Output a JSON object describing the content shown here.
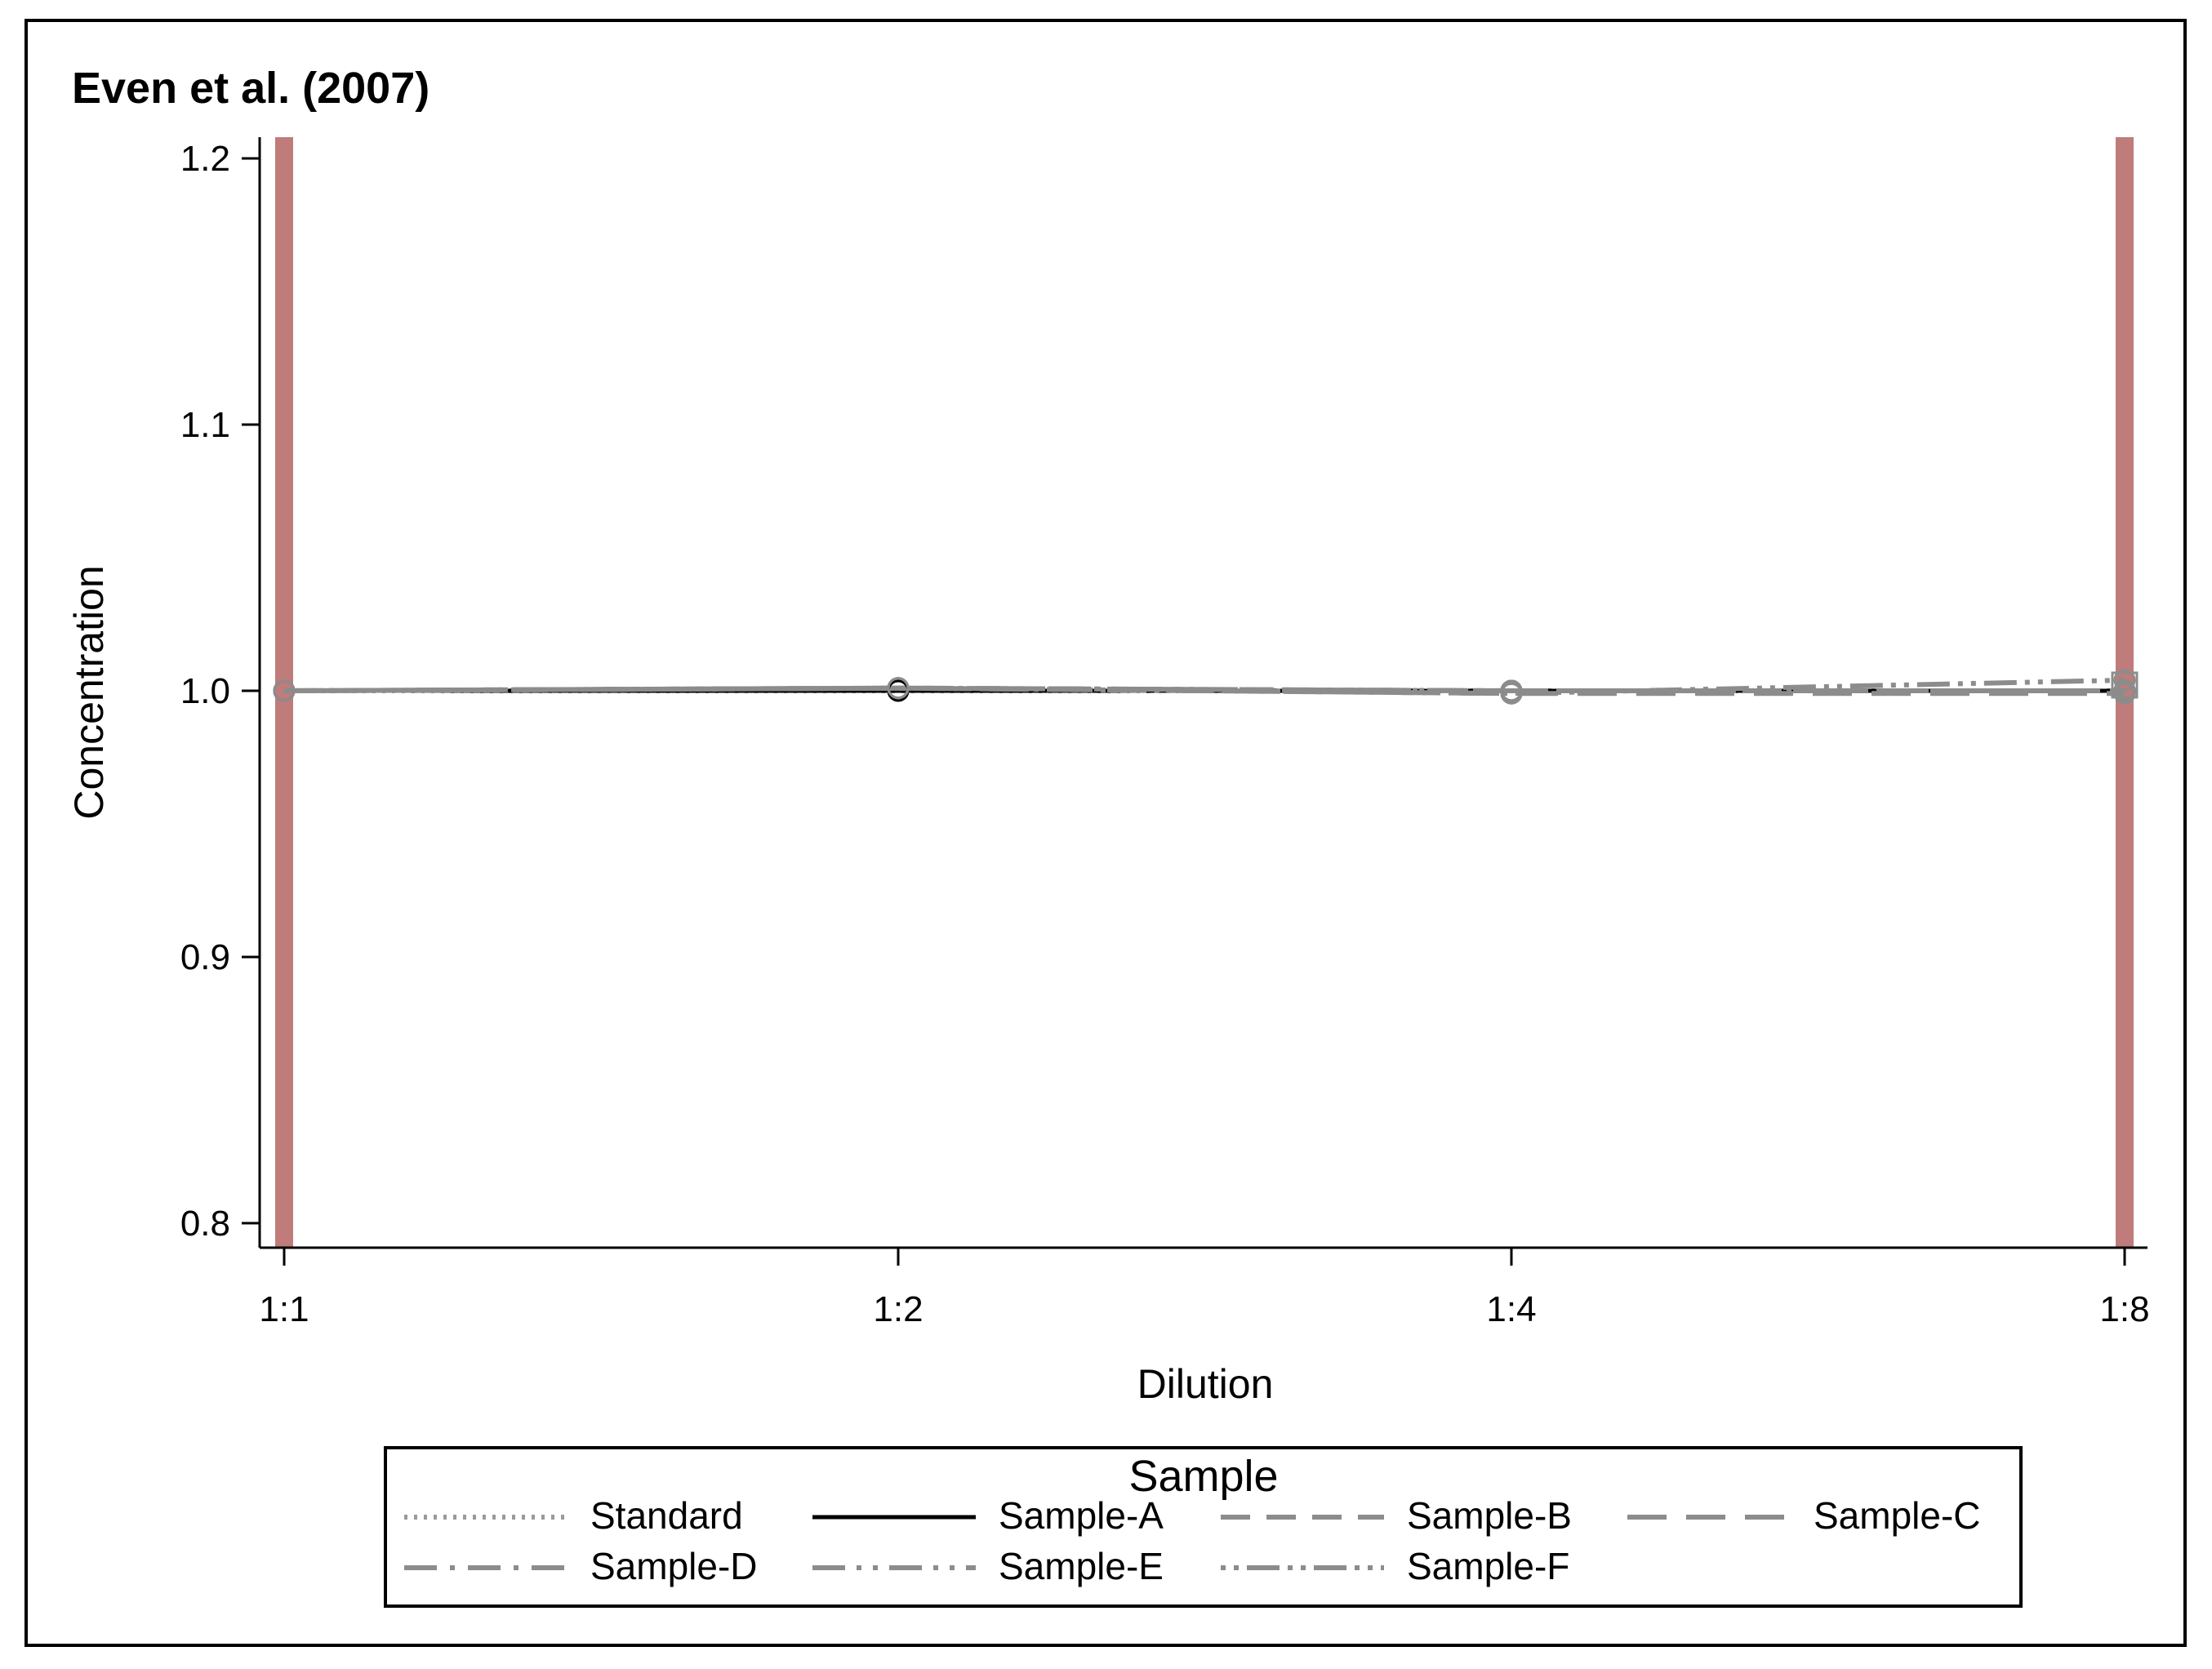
{
  "chart_data": {
    "type": "line",
    "title": "Even et al. (2007)",
    "xlabel": "Dilution",
    "ylabel": "Concentration",
    "categories": [
      "1:1",
      "1:2",
      "1:4",
      "1:8"
    ],
    "ylim": [
      0.8,
      1.2
    ],
    "yticks": [
      "0.8",
      "0.9",
      "1.0",
      "1.1",
      "1.2"
    ],
    "reference_lines_at": [
      "1:1",
      "1:8"
    ],
    "reference_line_color": "#c07b7b",
    "grid": false,
    "legend": {
      "title": "Sample",
      "placement": "bottom"
    },
    "series": [
      {
        "name": "Standard",
        "values": [
          1.0,
          1.0,
          1.0,
          1.0
        ],
        "color": "#9a9a9a",
        "dash": "dotted"
      },
      {
        "name": "Sample-A",
        "values": [
          1.0,
          1.0,
          1.0,
          1.0
        ],
        "color": "#000000",
        "dash": "solid"
      },
      {
        "name": "Sample-B",
        "values": [
          1.0,
          1.001,
          1.0,
          1.0
        ],
        "color": "#8c8c8c",
        "dash": "dashed"
      },
      {
        "name": "Sample-C",
        "values": [
          1.0,
          1.001,
          0.999,
          0.999
        ],
        "color": "#8c8c8c",
        "dash": "longdash"
      },
      {
        "name": "Sample-D",
        "values": [
          1.0,
          1.001,
          1.0,
          1.0
        ],
        "color": "#8c8c8c",
        "dash": "dashdot"
      },
      {
        "name": "Sample-E",
        "values": [
          1.0,
          1.001,
          1.0,
          1.0
        ],
        "color": "#8c8c8c",
        "dash": "dashdotdot"
      },
      {
        "name": "Sample-F",
        "values": [
          1.0,
          1.001,
          0.999,
          1.004
        ],
        "color": "#8c8c8c",
        "dash": "dotdash"
      }
    ]
  }
}
